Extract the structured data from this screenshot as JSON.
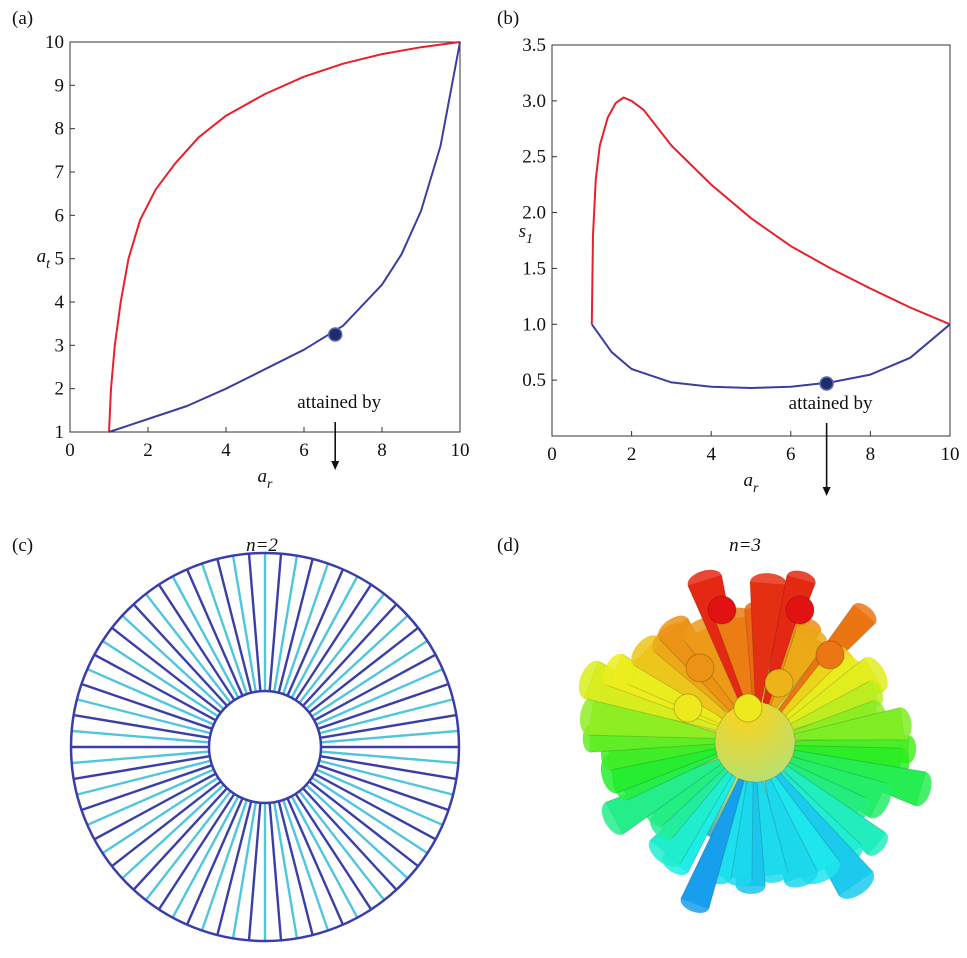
{
  "chart_data": [
    {
      "type": "line",
      "label": "(a)",
      "xlabel": "a",
      "xlabel_sub": "r",
      "ylabel": "a",
      "ylabel_sub": "t",
      "xlim": [
        0,
        10
      ],
      "ylim": [
        1,
        10
      ],
      "xticks": [
        0,
        2,
        4,
        6,
        8,
        10
      ],
      "yticks": [
        1,
        2,
        3,
        4,
        5,
        6,
        7,
        8,
        9,
        10
      ],
      "series": [
        {
          "color": "#e8202a",
          "x": [
            1,
            1.05,
            1.15,
            1.3,
            1.5,
            1.8,
            2.2,
            2.7,
            3.3,
            4,
            5,
            6,
            7,
            8,
            9,
            10
          ],
          "values": [
            1,
            2,
            3,
            4,
            5,
            5.9,
            6.6,
            7.2,
            7.8,
            8.3,
            8.8,
            9.2,
            9.5,
            9.72,
            9.88,
            10
          ]
        },
        {
          "color": "#3a3f9e",
          "x": [
            1,
            2,
            3,
            4,
            5,
            6,
            7,
            8,
            8.5,
            9,
            9.5,
            10
          ],
          "values": [
            1,
            1.3,
            1.6,
            2,
            2.45,
            2.9,
            3.45,
            4.4,
            5.1,
            6.1,
            7.6,
            10
          ]
        }
      ],
      "marker": {
        "x": 6.8,
        "y": 3.25,
        "color": "#1f2d6b"
      },
      "annotation": "attained by"
    },
    {
      "type": "line",
      "label": "(b)",
      "xlabel": "a",
      "xlabel_sub": "r",
      "ylabel": "s",
      "ylabel_sub": "1",
      "xlim": [
        0,
        10
      ],
      "ylim": [
        0,
        3.5
      ],
      "xticks": [
        0,
        2,
        4,
        6,
        8,
        10
      ],
      "yticks": [
        0.5,
        {
          "value": 1,
          "label": "1.0"
        },
        1.5,
        {
          "value": 2,
          "label": "2.0"
        },
        2.5,
        {
          "value": 3,
          "label": "3.0"
        },
        3.5
      ],
      "series": [
        {
          "color": "#e8202a",
          "x": [
            1,
            1.03,
            1.1,
            1.2,
            1.4,
            1.6,
            1.8,
            2,
            2.3,
            3,
            4,
            5,
            6,
            7,
            8,
            9,
            10
          ],
          "values": [
            1,
            1.8,
            2.3,
            2.6,
            2.85,
            2.98,
            3.03,
            3.0,
            2.92,
            2.6,
            2.25,
            1.95,
            1.7,
            1.5,
            1.32,
            1.15,
            1
          ]
        },
        {
          "color": "#3a3f9e",
          "x": [
            1,
            1.5,
            2,
            3,
            4,
            5,
            6,
            7,
            8,
            9,
            10
          ],
          "values": [
            1,
            0.75,
            0.6,
            0.48,
            0.44,
            0.43,
            0.44,
            0.48,
            0.55,
            0.7,
            1
          ]
        }
      ],
      "marker": {
        "x": 6.9,
        "y": 0.47,
        "color": "#1f2d6b"
      },
      "annotation": "attained by"
    }
  ],
  "illustrations": [
    {
      "label": "(c)",
      "title": "n=2"
    },
    {
      "label": "(d)",
      "title": "n=3"
    }
  ]
}
